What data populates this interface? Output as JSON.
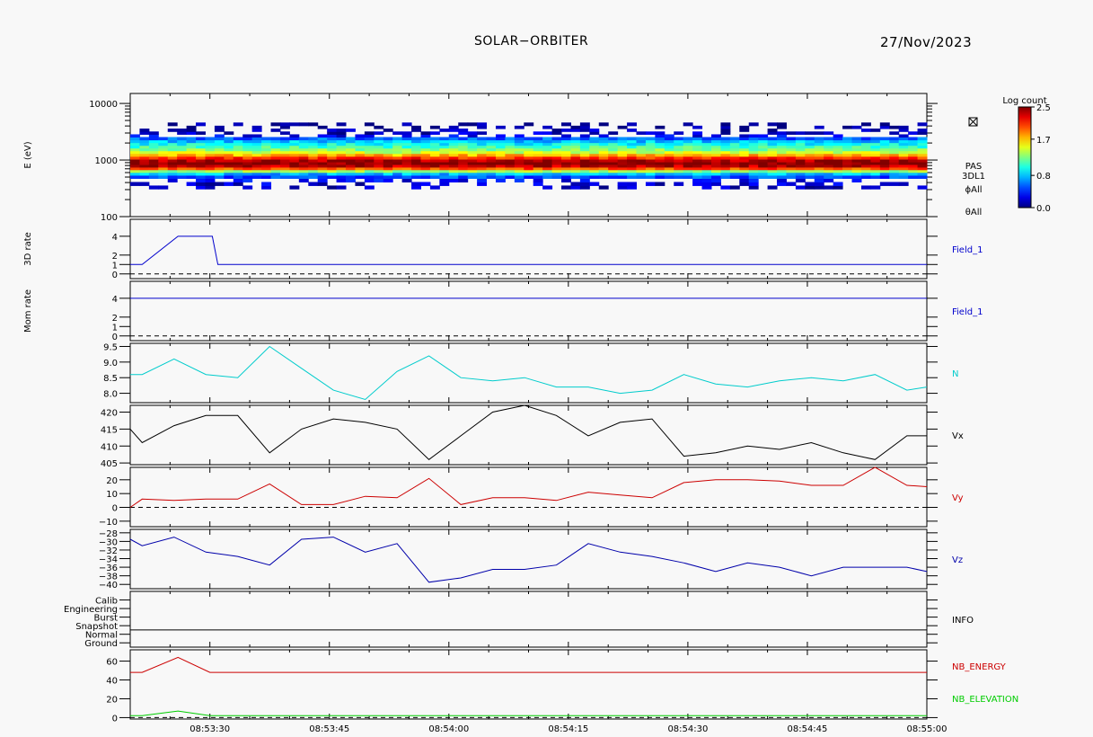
{
  "header": {
    "title": "SOLAR−ORBITER",
    "date": "27/Nov/2023"
  },
  "colorbar": {
    "title": "Log count",
    "ticks": [
      {
        "value": 2.5,
        "label": "2.5"
      },
      {
        "value": 1.7,
        "label": "1.7"
      },
      {
        "value": 0.8,
        "label": "0.8"
      },
      {
        "value": 0.0,
        "label": "0.0"
      }
    ],
    "range": [
      0.0,
      2.5
    ]
  },
  "spectrogram_labels": [
    "PAS",
    "3DL1",
    "ϕAll",
    "θAll"
  ],
  "x_axis": {
    "tmin_seconds": 0,
    "tmax_seconds": 100,
    "start_time": "08:53:20",
    "end_time": "08:55:00",
    "ticks": [
      {
        "t": 10,
        "label": "08:53:30"
      },
      {
        "t": 25,
        "label": "08:53:45"
      },
      {
        "t": 40,
        "label": "08:54:00"
      },
      {
        "t": 55,
        "label": "08:54:15"
      },
      {
        "t": 70,
        "label": "08:54:30"
      },
      {
        "t": 85,
        "label": "08:54:45"
      },
      {
        "t": 100,
        "label": "08:55:00"
      }
    ]
  },
  "chart_data": [
    {
      "type": "heatmap",
      "panel": "energy-spectrogram",
      "ylabel": "E (eV)",
      "yscale": "log",
      "ylim": [
        100,
        15000
      ],
      "yticks": [
        {
          "v": 100,
          "label": "100"
        },
        {
          "v": 1000,
          "label": "1000"
        },
        {
          "v": 10000,
          "label": "10000"
        }
      ],
      "profile": [
        {
          "E": 330,
          "log_count": 0.15
        },
        {
          "E": 380,
          "log_count": 0.2
        },
        {
          "E": 440,
          "log_count": 0.3
        },
        {
          "E": 510,
          "log_count": 0.5
        },
        {
          "E": 570,
          "log_count": 0.75
        },
        {
          "E": 640,
          "log_count": 1.3
        },
        {
          "E": 710,
          "log_count": 2.0
        },
        {
          "E": 790,
          "log_count": 2.35
        },
        {
          "E": 880,
          "log_count": 2.5
        },
        {
          "E": 980,
          "log_count": 2.4
        },
        {
          "E": 1100,
          "log_count": 2.1
        },
        {
          "E": 1230,
          "log_count": 1.75
        },
        {
          "E": 1380,
          "log_count": 1.45
        },
        {
          "E": 1540,
          "log_count": 1.25
        },
        {
          "E": 1720,
          "log_count": 1.1
        },
        {
          "E": 1920,
          "log_count": 0.95
        },
        {
          "E": 2150,
          "log_count": 0.8
        },
        {
          "E": 2400,
          "log_count": 0.55
        },
        {
          "E": 2700,
          "log_count": 0.3
        },
        {
          "E": 3000,
          "log_count": 0.15
        },
        {
          "E": 3400,
          "log_count": 0.1
        },
        {
          "E": 3800,
          "log_count": 0.05
        },
        {
          "E": 4300,
          "log_count": 0.02
        }
      ]
    },
    {
      "type": "line",
      "panel": "3d-rate",
      "ylabel": "3D rate",
      "ylim": [
        -0.5,
        5.8
      ],
      "yticks": [
        {
          "v": 0,
          "label": "0"
        },
        {
          "v": 1,
          "label": "1"
        },
        {
          "v": 2,
          "label": "2"
        },
        {
          "v": 4,
          "label": "4"
        }
      ],
      "zero_line": true,
      "series": [
        {
          "name": "Field_1",
          "color": "#0000cc",
          "x": [
            0,
            1.5,
            6,
            10.3,
            11,
            100
          ],
          "y": [
            1,
            1,
            4,
            4,
            1,
            1
          ]
        }
      ]
    },
    {
      "type": "line",
      "panel": "mom-rate",
      "ylabel": "Mom rate",
      "ylim": [
        -0.5,
        5.8
      ],
      "yticks": [
        {
          "v": 0,
          "label": "0"
        },
        {
          "v": 1,
          "label": "1"
        },
        {
          "v": 2,
          "label": "2"
        },
        {
          "v": 4,
          "label": "4"
        }
      ],
      "zero_line": true,
      "series": [
        {
          "name": "Field_1",
          "color": "#0000cc",
          "x": [
            0,
            100
          ],
          "y": [
            4,
            4
          ]
        }
      ]
    },
    {
      "type": "line",
      "panel": "density",
      "ylabel": "",
      "ylim": [
        7.7,
        9.6
      ],
      "yticks": [
        {
          "v": 8.0,
          "label": "8.0"
        },
        {
          "v": 8.5,
          "label": "8.5"
        },
        {
          "v": 9.0,
          "label": "9.0"
        },
        {
          "v": 9.5,
          "label": "9.5"
        }
      ],
      "zero_line": false,
      "series": [
        {
          "name": "N",
          "color": "#00cccc",
          "x": [
            0,
            1.5,
            5.5,
            9.5,
            13.5,
            17.5,
            21.5,
            25.5,
            29.5,
            33.5,
            37.5,
            41.5,
            45.5,
            49.5,
            53.5,
            57.5,
            61.5,
            65.5,
            69.5,
            73.5,
            77.5,
            81.5,
            85.5,
            89.5,
            93.5,
            97.5,
            100
          ],
          "y": [
            8.6,
            8.6,
            9.1,
            8.6,
            8.5,
            9.5,
            8.8,
            8.1,
            7.8,
            8.7,
            9.2,
            8.5,
            8.4,
            8.5,
            8.2,
            8.2,
            8.0,
            8.1,
            8.6,
            8.3,
            8.2,
            8.4,
            8.5,
            8.4,
            8.6,
            8.1,
            8.2
          ]
        }
      ]
    },
    {
      "type": "line",
      "panel": "vx",
      "ylabel": "",
      "ylim": [
        404.5,
        422
      ],
      "yticks": [
        {
          "v": 405,
          "label": "405"
        },
        {
          "v": 410,
          "label": "410"
        },
        {
          "v": 415,
          "label": "415"
        },
        {
          "v": 420,
          "label": "420"
        }
      ],
      "zero_line": false,
      "series": [
        {
          "name": "Vx",
          "color": "#000000",
          "x": [
            0,
            1.5,
            5.5,
            9.5,
            13.5,
            17.5,
            21.5,
            25.5,
            29.5,
            33.5,
            37.5,
            41.5,
            45.5,
            49.5,
            53.5,
            57.5,
            61.5,
            65.5,
            69.5,
            73.5,
            77.5,
            81.5,
            85.5,
            89.5,
            93.5,
            97.5,
            100
          ],
          "y": [
            415,
            411,
            416,
            419,
            419,
            408,
            415,
            418,
            417,
            415,
            406,
            413,
            420,
            422,
            419,
            413,
            417,
            418,
            407,
            408,
            410,
            409,
            411,
            408,
            406,
            413,
            413
          ]
        }
      ]
    },
    {
      "type": "line",
      "panel": "vy",
      "ylabel": "",
      "ylim": [
        -14,
        29
      ],
      "yticks": [
        {
          "v": -10,
          "label": "−10"
        },
        {
          "v": 0,
          "label": "0"
        },
        {
          "v": 10,
          "label": "10"
        },
        {
          "v": 20,
          "label": "20"
        }
      ],
      "zero_line": true,
      "series": [
        {
          "name": "Vy",
          "color": "#cc0000",
          "x": [
            0,
            1.5,
            5.5,
            9.5,
            13.5,
            17.5,
            21.5,
            25.5,
            29.5,
            33.5,
            37.5,
            41.5,
            45.5,
            49.5,
            53.5,
            57.5,
            61.5,
            65.5,
            69.5,
            73.5,
            77.5,
            81.5,
            85.5,
            89.5,
            93.5,
            97.5,
            100
          ],
          "y": [
            0,
            6,
            5,
            6,
            6,
            17,
            2,
            2,
            8,
            7,
            21,
            2,
            7,
            7,
            5,
            11,
            9,
            7,
            18,
            20,
            20,
            19,
            16,
            16,
            29,
            16,
            15
          ]
        }
      ]
    },
    {
      "type": "line",
      "panel": "vz",
      "ylabel": "",
      "ylim": [
        -41,
        -27.2
      ],
      "yticks": [
        {
          "v": -40,
          "label": "−40"
        },
        {
          "v": -38,
          "label": "−38"
        },
        {
          "v": -36,
          "label": "−36"
        },
        {
          "v": -34,
          "label": "−34"
        },
        {
          "v": -32,
          "label": "−32"
        },
        {
          "v": -30,
          "label": "−30"
        },
        {
          "v": -28,
          "label": "−28"
        }
      ],
      "zero_line": false,
      "series": [
        {
          "name": "Vz",
          "color": "#0000aa",
          "x": [
            0,
            1.5,
            5.5,
            9.5,
            13.5,
            17.5,
            21.5,
            25.5,
            29.5,
            33.5,
            37.5,
            41.5,
            45.5,
            49.5,
            53.5,
            57.5,
            61.5,
            65.5,
            69.5,
            73.5,
            77.5,
            81.5,
            85.5,
            89.5,
            93.5,
            97.5,
            100
          ],
          "y": [
            -29.5,
            -31,
            -29,
            -32.5,
            -33.5,
            -35.5,
            -29.5,
            -29,
            -32.5,
            -30.5,
            -39.5,
            -38.5,
            -36.5,
            -36.5,
            -35.5,
            -30.5,
            -32.5,
            -33.5,
            -35,
            -37,
            -35,
            -36,
            -38,
            -36,
            -36,
            -36,
            -37
          ]
        }
      ]
    },
    {
      "type": "line",
      "panel": "info",
      "ylabel": "",
      "ylim": [
        0,
        6.5
      ],
      "yticks": [
        {
          "v": 0.5,
          "label": "Ground"
        },
        {
          "v": 1.5,
          "label": "Normal"
        },
        {
          "v": 2.5,
          "label": "Snapshot"
        },
        {
          "v": 3.5,
          "label": "Burst"
        },
        {
          "v": 4.5,
          "label": "Engineering"
        },
        {
          "v": 5.5,
          "label": "Calib"
        }
      ],
      "separator_at": 2.0,
      "zero_line": false,
      "series": [
        {
          "name": "INFO",
          "color": "#000000",
          "x": [],
          "y": []
        }
      ]
    },
    {
      "type": "line",
      "panel": "nb",
      "ylabel": "",
      "ylim": [
        -1.5,
        72
      ],
      "yticks": [
        {
          "v": 0,
          "label": "0"
        },
        {
          "v": 20,
          "label": "20"
        },
        {
          "v": 40,
          "label": "40"
        },
        {
          "v": 60,
          "label": "60"
        }
      ],
      "zero_line": true,
      "series": [
        {
          "name": "NB_ENERGY",
          "color": "#cc0000",
          "x": [
            0,
            1.5,
            6,
            10,
            100
          ],
          "y": [
            48,
            48,
            64,
            48,
            48
          ]
        },
        {
          "name": "NB_ELEVATION",
          "color": "#00cc00",
          "x": [
            0,
            1.5,
            6,
            10,
            100
          ],
          "y": [
            2,
            2,
            7,
            2,
            2
          ]
        }
      ]
    }
  ]
}
